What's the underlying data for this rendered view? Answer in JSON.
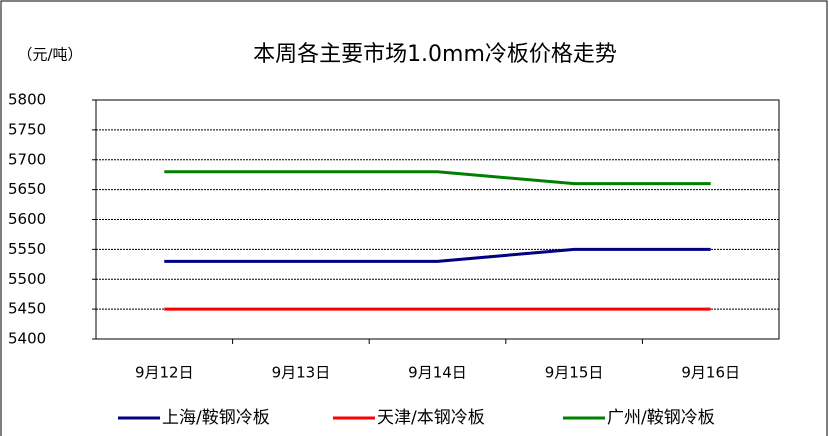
{
  "chart_data": {
    "type": "line",
    "title": "本周各主要市场1.0mm冷板价格走势",
    "y_label": "（元/吨）",
    "categories": [
      "9月12日",
      "9月13日",
      "9月14日",
      "9月15日",
      "9月16日"
    ],
    "series": [
      {
        "name": "上海/鞍钢冷板",
        "color": "#000080",
        "values": [
          5530,
          5530,
          5530,
          5550,
          5550
        ]
      },
      {
        "name": "天津/本钢冷板",
        "color": "#ff0000",
        "values": [
          5450,
          5450,
          5450,
          5450,
          5450
        ]
      },
      {
        "name": "广州/鞍钢冷板",
        "color": "#008000",
        "values": [
          5680,
          5680,
          5680,
          5660,
          5660
        ]
      }
    ],
    "ylim": [
      5400,
      5800
    ],
    "yticks": [
      5400,
      5450,
      5500,
      5550,
      5600,
      5650,
      5700,
      5750,
      5800
    ],
    "grid": true,
    "legend": "bottom"
  }
}
